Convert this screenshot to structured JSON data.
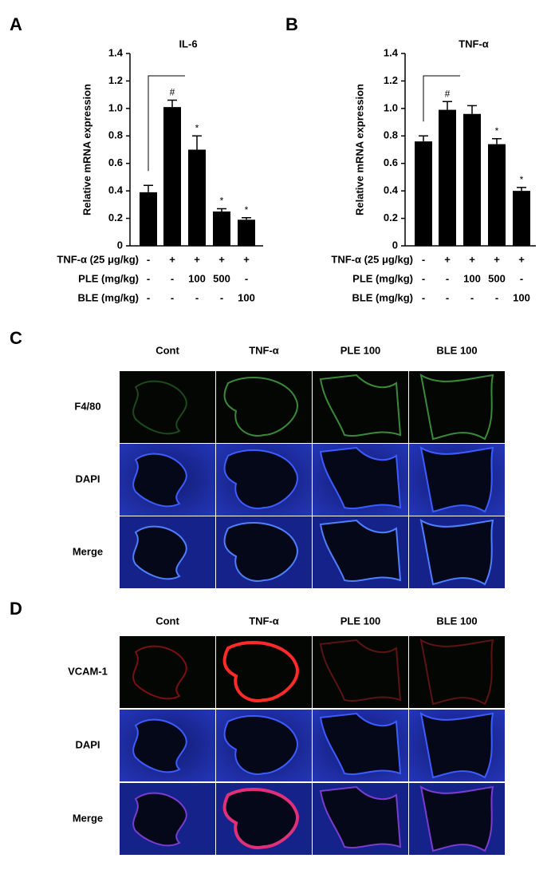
{
  "chart_data": [
    {
      "type": "bar",
      "panel": "A",
      "title": "IL-6",
      "y_label": "Relative mRNA expression",
      "categories": [
        null,
        null,
        null,
        null,
        null
      ],
      "values": [
        0.39,
        1.01,
        0.7,
        0.25,
        0.19
      ],
      "errors": [
        0.05,
        0.05,
        0.1,
        0.02,
        0.015
      ],
      "annotations": [
        null,
        "#",
        "*",
        "*",
        "*"
      ],
      "color": "#000000",
      "ylim": [
        0,
        1.4
      ],
      "yticks": [
        0,
        0.2,
        0.4,
        0.6,
        0.8,
        {
          "value": 1,
          "label": "1.0"
        },
        1.2,
        1.4
      ],
      "treatment_rows": [
        {
          "label": "TNF-α (25 μg/kg)",
          "cells": [
            "-",
            "+",
            "+",
            "+",
            "+"
          ]
        },
        {
          "label": "PLE (mg/kg)",
          "cells": [
            "-",
            "-",
            "100",
            "500",
            "-"
          ]
        },
        {
          "label": "BLE (mg/kg)",
          "cells": [
            "-",
            "-",
            "-",
            "-",
            "100"
          ]
        }
      ]
    },
    {
      "type": "bar",
      "panel": "B",
      "title": "TNF-α",
      "y_label": "Relative mRNA expression",
      "categories": [
        null,
        null,
        null,
        null,
        null
      ],
      "values": [
        0.76,
        0.99,
        0.96,
        0.74,
        0.4
      ],
      "errors": [
        0.04,
        0.06,
        0.06,
        0.04,
        0.025
      ],
      "annotations": [
        null,
        "#",
        null,
        "*",
        "*"
      ],
      "color": "#000000",
      "ylim": [
        0,
        1.4
      ],
      "yticks": [
        0,
        0.2,
        0.4,
        0.6,
        0.8,
        {
          "value": 1,
          "label": "1.0"
        },
        1.2,
        1.4
      ],
      "treatment_rows": [
        {
          "label": "TNF-α (25 μg/kg)",
          "cells": [
            "-",
            "+",
            "+",
            "+",
            "+"
          ]
        },
        {
          "label": "PLE (mg/kg)",
          "cells": [
            "-",
            "-",
            "100",
            "500",
            "-"
          ]
        },
        {
          "label": "BLE (mg/kg)",
          "cells": [
            "-",
            "-",
            "-",
            "-",
            "100"
          ]
        }
      ]
    }
  ],
  "image_panels": [
    {
      "panel": "C",
      "columns": [
        "Cont",
        "TNF-α",
        "PLE 100",
        "BLE 100"
      ],
      "rows": [
        "F4/80",
        "DAPI",
        "Merge"
      ]
    },
    {
      "panel": "D",
      "columns": [
        "Cont",
        "TNF-α",
        "PLE 100",
        "BLE 100"
      ],
      "rows": [
        "VCAM-1",
        "DAPI",
        "Merge"
      ]
    }
  ]
}
